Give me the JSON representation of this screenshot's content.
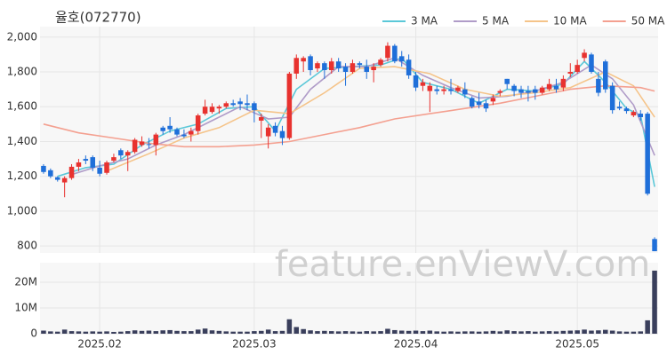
{
  "chart_data": {
    "type": "candlestick",
    "title": "율호(072770)",
    "watermark": "feature.enViewV.com",
    "up_color": "#e8322f",
    "down_color": "#1f6fd9",
    "xlim": [
      -0.5,
      87.5
    ],
    "xticks": [
      {
        "value": 8,
        "label": "2025.02"
      },
      {
        "value": 30,
        "label": "2025.03"
      },
      {
        "value": 53,
        "label": "2025.04"
      },
      {
        "value": 76,
        "label": "2025.05"
      }
    ],
    "ylim": [
      760,
      2060
    ],
    "yticks": [
      {
        "value": 2000,
        "label": "2,000"
      },
      {
        "value": 1800,
        "label": "1,800"
      },
      {
        "value": 1600,
        "label": "1,600"
      },
      {
        "value": 1400,
        "label": "1,400"
      },
      {
        "value": 1200,
        "label": "1,200"
      },
      {
        "value": 1000,
        "label": "1,000"
      },
      800
    ],
    "grid": true,
    "legend": "top-right",
    "ohlc": [
      [
        1260,
        1270,
        1215,
        1225
      ],
      [
        1235,
        1245,
        1190,
        1200
      ],
      [
        1195,
        1200,
        1170,
        1180
      ],
      [
        1165,
        1200,
        1080,
        1190
      ],
      [
        1190,
        1270,
        1180,
        1255
      ],
      [
        1255,
        1300,
        1230,
        1280
      ],
      [
        1300,
        1320,
        1270,
        1290
      ],
      [
        1310,
        1320,
        1230,
        1250
      ],
      [
        1250,
        1290,
        1200,
        1215
      ],
      [
        1220,
        1290,
        1210,
        1280
      ],
      [
        1290,
        1330,
        1280,
        1310
      ],
      [
        1350,
        1360,
        1300,
        1320
      ],
      [
        1320,
        1350,
        1230,
        1340
      ],
      [
        1340,
        1420,
        1330,
        1410
      ],
      [
        1380,
        1430,
        1370,
        1400
      ],
      [
        1385,
        1420,
        1360,
        1380
      ],
      [
        1380,
        1450,
        1320,
        1440
      ],
      [
        1480,
        1490,
        1440,
        1460
      ],
      [
        1490,
        1540,
        1450,
        1470
      ],
      [
        1470,
        1480,
        1430,
        1440
      ],
      [
        1440,
        1470,
        1420,
        1430
      ],
      [
        1440,
        1480,
        1400,
        1460
      ],
      [
        1460,
        1560,
        1440,
        1550
      ],
      [
        1560,
        1640,
        1550,
        1600
      ],
      [
        1570,
        1620,
        1560,
        1600
      ],
      [
        1590,
        1610,
        1560,
        1600
      ],
      [
        1600,
        1630,
        1590,
        1620
      ],
      [
        1620,
        1640,
        1600,
        1610
      ],
      [
        1630,
        1650,
        1580,
        1615
      ],
      [
        1620,
        1670,
        1580,
        1610
      ],
      [
        1620,
        1630,
        1510,
        1580
      ],
      [
        1520,
        1560,
        1420,
        1540
      ],
      [
        1430,
        1500,
        1360,
        1480
      ],
      [
        1490,
        1510,
        1430,
        1450
      ],
      [
        1460,
        1490,
        1380,
        1420
      ],
      [
        1420,
        1800,
        1410,
        1790
      ],
      [
        1790,
        1900,
        1760,
        1880
      ],
      [
        1860,
        1890,
        1800,
        1880
      ],
      [
        1890,
        1900,
        1780,
        1810
      ],
      [
        1820,
        1860,
        1800,
        1850
      ],
      [
        1850,
        1860,
        1760,
        1810
      ],
      [
        1810,
        1880,
        1790,
        1860
      ],
      [
        1860,
        1880,
        1800,
        1820
      ],
      [
        1830,
        1850,
        1720,
        1800
      ],
      [
        1800,
        1870,
        1790,
        1850
      ],
      [
        1850,
        1860,
        1820,
        1840
      ],
      [
        1830,
        1870,
        1760,
        1800
      ],
      [
        1810,
        1850,
        1740,
        1830
      ],
      [
        1840,
        1880,
        1830,
        1870
      ],
      [
        1880,
        1970,
        1860,
        1950
      ],
      [
        1950,
        1960,
        1850,
        1860
      ],
      [
        1890,
        1920,
        1830,
        1860
      ],
      [
        1870,
        1900,
        1760,
        1780
      ],
      [
        1780,
        1800,
        1690,
        1710
      ],
      [
        1720,
        1760,
        1690,
        1740
      ],
      [
        1690,
        1740,
        1570,
        1720
      ],
      [
        1700,
        1720,
        1670,
        1690
      ],
      [
        1690,
        1720,
        1670,
        1700
      ],
      [
        1700,
        1760,
        1670,
        1690
      ],
      [
        1690,
        1720,
        1680,
        1710
      ],
      [
        1700,
        1740,
        1650,
        1670
      ],
      [
        1650,
        1660,
        1590,
        1600
      ],
      [
        1630,
        1680,
        1590,
        1610
      ],
      [
        1620,
        1640,
        1570,
        1590
      ],
      [
        1630,
        1670,
        1610,
        1650
      ],
      [
        1680,
        1700,
        1660,
        1690
      ],
      [
        1760,
        1760,
        1700,
        1730
      ],
      [
        1720,
        1730,
        1660,
        1690
      ],
      [
        1700,
        1720,
        1650,
        1680
      ],
      [
        1690,
        1720,
        1630,
        1680
      ],
      [
        1700,
        1720,
        1640,
        1680
      ],
      [
        1680,
        1720,
        1670,
        1710
      ],
      [
        1700,
        1760,
        1690,
        1730
      ],
      [
        1720,
        1760,
        1680,
        1700
      ],
      [
        1710,
        1780,
        1690,
        1760
      ],
      [
        1790,
        1850,
        1770,
        1800
      ],
      [
        1800,
        1870,
        1790,
        1840
      ],
      [
        1880,
        1930,
        1860,
        1910
      ],
      [
        1900,
        1910,
        1790,
        1800
      ],
      [
        1760,
        1800,
        1660,
        1680
      ],
      [
        1860,
        1870,
        1680,
        1700
      ],
      [
        1720,
        1740,
        1560,
        1580
      ],
      [
        1600,
        1630,
        1580,
        1590
      ],
      [
        1590,
        1600,
        1560,
        1575
      ],
      [
        1550,
        1580,
        1540,
        1570
      ],
      [
        1560,
        1580,
        1520,
        1540
      ],
      [
        1560,
        1570,
        1090,
        1100
      ],
      [
        840,
        850,
        770,
        770
      ]
    ],
    "series": [
      {
        "name": "3 MA",
        "color": "#5bc8d8",
        "x": [
          2,
          6,
          10,
          14,
          18,
          22,
          26,
          30,
          33,
          36,
          40,
          44,
          48,
          51,
          54,
          58,
          62,
          66,
          70,
          74,
          77,
          80,
          83,
          85,
          87
        ],
        "values": [
          1200,
          1250,
          1270,
          1380,
          1460,
          1500,
          1590,
          1600,
          1460,
          1700,
          1820,
          1830,
          1840,
          1880,
          1740,
          1700,
          1620,
          1700,
          1690,
          1730,
          1860,
          1740,
          1590,
          1550,
          1140
        ]
      },
      {
        "name": "5 MA",
        "color": "#b09cc8",
        "x": [
          4,
          8,
          12,
          16,
          20,
          24,
          28,
          32,
          35,
          38,
          42,
          46,
          50,
          54,
          58,
          62,
          66,
          70,
          74,
          78,
          81,
          84,
          87
        ],
        "values": [
          1210,
          1260,
          1300,
          1380,
          1440,
          1520,
          1600,
          1530,
          1540,
          1700,
          1830,
          1830,
          1880,
          1780,
          1710,
          1650,
          1660,
          1690,
          1740,
          1840,
          1760,
          1610,
          1320
        ]
      },
      {
        "name": "10 MA",
        "color": "#f5c48a",
        "x": [
          9,
          15,
          20,
          25,
          30,
          35,
          40,
          45,
          50,
          55,
          60,
          65,
          70,
          75,
          80,
          84,
          87
        ],
        "values": [
          1230,
          1330,
          1420,
          1480,
          1580,
          1560,
          1680,
          1820,
          1830,
          1790,
          1700,
          1660,
          1680,
          1710,
          1800,
          1720,
          1540
        ]
      },
      {
        "name": "50 MA",
        "color": "#f4a090",
        "x": [
          0,
          5,
          10,
          15,
          20,
          25,
          30,
          35,
          40,
          45,
          50,
          55,
          60,
          65,
          70,
          75,
          80,
          85,
          87
        ],
        "values": [
          1500,
          1450,
          1420,
          1390,
          1370,
          1370,
          1380,
          1400,
          1440,
          1480,
          1530,
          1560,
          1590,
          1620,
          1660,
          1700,
          1720,
          1710,
          1690
        ]
      }
    ],
    "volume": {
      "color": "#3a3f5c",
      "ylim": [
        0,
        26.2
      ],
      "yticks": [
        {
          "value": 20,
          "label": "20M"
        },
        {
          "value": 10,
          "label": "10M"
        },
        0
      ],
      "values": [
        1.2,
        0.9,
        0.8,
        1.6,
        1.0,
        0.9,
        0.8,
        0.9,
        0.8,
        0.9,
        0.7,
        0.8,
        1.0,
        1.3,
        1.1,
        1.2,
        1.0,
        1.3,
        1.4,
        1.1,
        1.0,
        1.0,
        1.6,
        2.0,
        1.3,
        1.1,
        0.9,
        0.8,
        0.8,
        0.8,
        1.0,
        1.1,
        1.6,
        1.0,
        1.1,
        5.6,
        2.6,
        1.8,
        1.3,
        1.0,
        1.1,
        1.0,
        0.9,
        1.0,
        0.9,
        0.8,
        1.0,
        0.9,
        1.0,
        1.9,
        1.4,
        1.2,
        1.1,
        1.2,
        1.0,
        1.2,
        0.9,
        0.8,
        0.9,
        0.8,
        0.9,
        0.9,
        0.8,
        0.9,
        1.1,
        0.9,
        1.3,
        1.0,
        0.9,
        1.0,
        0.8,
        0.9,
        1.0,
        0.9,
        1.1,
        1.2,
        1.3,
        1.6,
        1.2,
        1.3,
        1.5,
        1.2,
        0.9,
        0.8,
        0.8,
        0.9,
        5.2,
        24.5
      ]
    }
  }
}
